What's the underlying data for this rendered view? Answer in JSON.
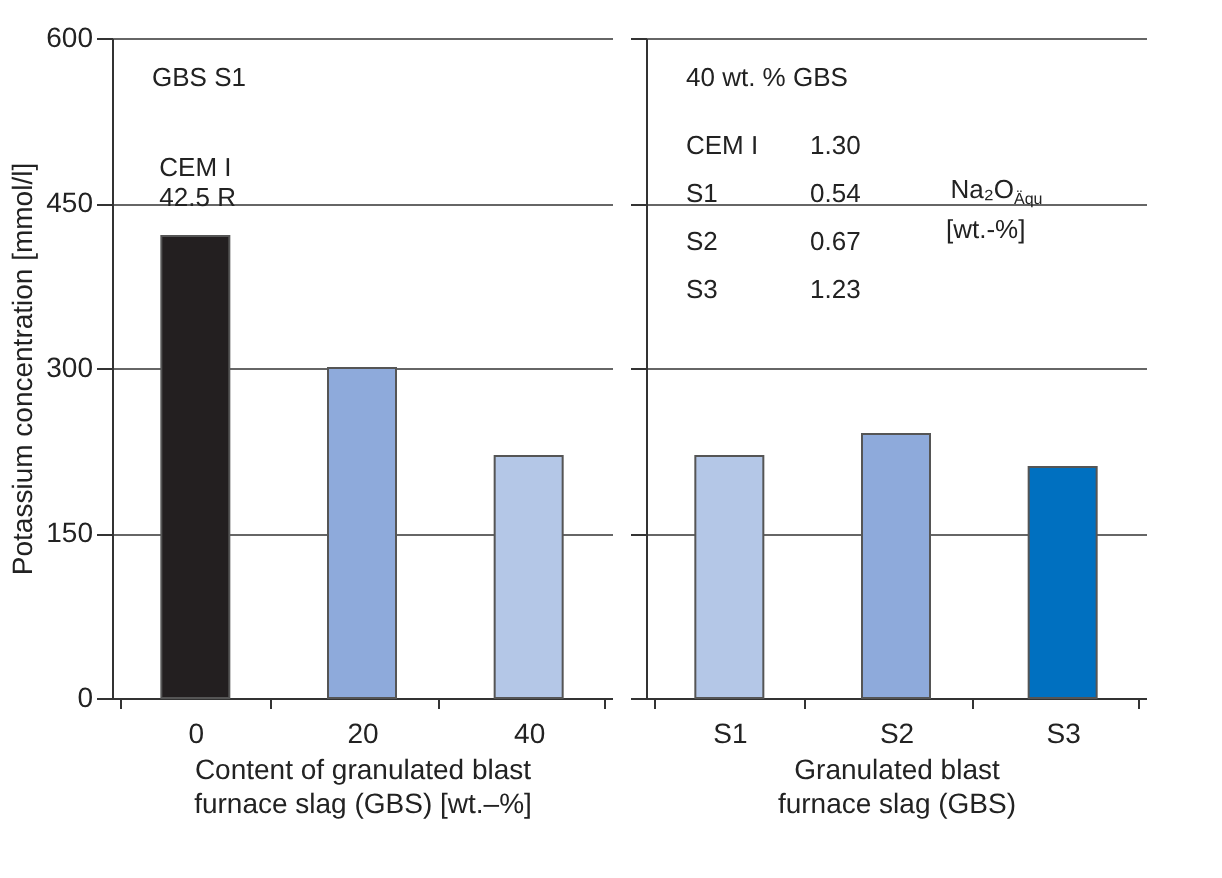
{
  "chart_data": [
    {
      "type": "bar",
      "ylabel": "Potassium concentration [mmol/l]",
      "xlabel": "Content of granulated blast\nfurnace slag (GBS) [wt.–%]",
      "categories": [
        "0",
        "20",
        "40"
      ],
      "values": [
        420,
        300,
        220
      ],
      "colors": [
        "#231f20",
        "#8eaadb",
        "#b4c7e7"
      ],
      "ylim": [
        0,
        600
      ],
      "yticks": [
        0,
        150,
        300,
        450,
        600
      ],
      "grid": "y",
      "annotations": [
        "GBS S1",
        {
          "text": "CEM I\n42.5 R",
          "x": "0",
          "y": 420
        }
      ]
    },
    {
      "type": "bar",
      "xlabel": "Granulated blast\nfurnace slag (GBS)",
      "categories": [
        "S1",
        "S2",
        "S3"
      ],
      "values": [
        220,
        240,
        210
      ],
      "colors": [
        "#b4c7e7",
        "#8eaadb",
        "#0070c0"
      ],
      "ylim": [
        0,
        600
      ],
      "yticks": [
        0,
        150,
        300,
        450,
        600
      ],
      "grid": "y",
      "tick_labels": "x",
      "annotations": [
        "40 wt. % GBS",
        "CEM I",
        "1.30",
        "S1",
        "0.54",
        "S2",
        "0.67",
        "S3",
        "1.23",
        "Na₂O$_{Äqu}$",
        "[wt.-%]"
      ]
    }
  ]
}
